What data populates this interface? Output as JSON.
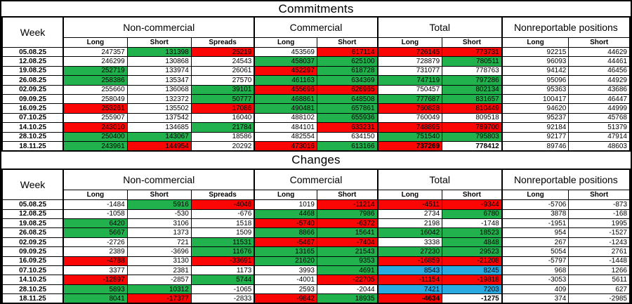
{
  "titles": {
    "commitments": "Commitments",
    "changes": "Changes"
  },
  "headers": {
    "week": "Week",
    "groups": [
      {
        "label": "Non-commercial",
        "cols": [
          "Long",
          "Short",
          "Spreads"
        ]
      },
      {
        "label": "Commercial",
        "cols": [
          "Long",
          "Short"
        ]
      },
      {
        "label": "Total",
        "cols": [
          "Long",
          "Short"
        ]
      },
      {
        "label": "Nonreportable positions",
        "cols": [
          "Long",
          "Short"
        ]
      }
    ]
  },
  "colors": {
    "highlight_green": "#21B24D",
    "highlight_red": "#FB0505",
    "highlight_blue": "#29ABE2",
    "grid": "#000000",
    "background": "#FFFFFF"
  },
  "commitments_rows": [
    {
      "week": "05.08.25",
      "cells": [
        [
          "247357",
          "w"
        ],
        [
          "131398",
          "g"
        ],
        [
          "25219",
          "r"
        ],
        [
          "453569",
          "w"
        ],
        [
          "617114",
          "r"
        ],
        [
          "726145",
          "r"
        ],
        [
          "773731",
          "r"
        ],
        [
          "92215",
          "w"
        ],
        [
          "44629",
          "w"
        ]
      ]
    },
    {
      "week": "12.08.25",
      "cells": [
        [
          "246299",
          "w"
        ],
        [
          "130868",
          "w"
        ],
        [
          "24543",
          "w"
        ],
        [
          "458037",
          "g"
        ],
        [
          "625100",
          "g"
        ],
        [
          "728879",
          "w"
        ],
        [
          "780511",
          "g"
        ],
        [
          "96093",
          "w"
        ],
        [
          "44461",
          "w"
        ]
      ]
    },
    {
      "week": "19.08.25",
      "cells": [
        [
          "252719",
          "g"
        ],
        [
          "133974",
          "w"
        ],
        [
          "26061",
          "w"
        ],
        [
          "452297",
          "r"
        ],
        [
          "618728",
          "g"
        ],
        [
          "731077",
          "w"
        ],
        [
          "778763",
          "w"
        ],
        [
          "94142",
          "w"
        ],
        [
          "46456",
          "w"
        ]
      ]
    },
    {
      "week": "26.08.25",
      "cells": [
        [
          "258386",
          "g"
        ],
        [
          "135347",
          "w"
        ],
        [
          "27570",
          "w"
        ],
        [
          "461163",
          "g"
        ],
        [
          "634369",
          "g"
        ],
        [
          "747119",
          "g"
        ],
        [
          "797286",
          "g"
        ],
        [
          "95096",
          "w"
        ],
        [
          "44929",
          "w"
        ]
      ]
    },
    {
      "week": "02.09.25",
      "cells": [
        [
          "255660",
          "w"
        ],
        [
          "136068",
          "w"
        ],
        [
          "39101",
          "g"
        ],
        [
          "455696",
          "r"
        ],
        [
          "626965",
          "r"
        ],
        [
          "750457",
          "w"
        ],
        [
          "802134",
          "g"
        ],
        [
          "95363",
          "w"
        ],
        [
          "43686",
          "w"
        ]
      ]
    },
    {
      "week": "09.09.25",
      "cells": [
        [
          "258049",
          "w"
        ],
        [
          "132372",
          "w"
        ],
        [
          "50777",
          "g"
        ],
        [
          "468861",
          "g"
        ],
        [
          "648508",
          "g"
        ],
        [
          "777687",
          "g"
        ],
        [
          "831657",
          "g"
        ],
        [
          "100417",
          "w"
        ],
        [
          "46447",
          "w"
        ]
      ]
    },
    {
      "week": "16.09.25",
      "cells": [
        [
          "253261",
          "r"
        ],
        [
          "135502",
          "w"
        ],
        [
          "17086",
          "r"
        ],
        [
          "490481",
          "g"
        ],
        [
          "657861",
          "g"
        ],
        [
          "760828",
          "r"
        ],
        [
          "810449",
          "r"
        ],
        [
          "94620",
          "w"
        ],
        [
          "44999",
          "w"
        ]
      ]
    },
    {
      "week": "07.10.25",
      "cells": [
        [
          "255907",
          "w"
        ],
        [
          "137542",
          "w"
        ],
        [
          "16040",
          "w"
        ],
        [
          "488102",
          "w"
        ],
        [
          "655936",
          "g"
        ],
        [
          "760049",
          "w"
        ],
        [
          "809518",
          "w"
        ],
        [
          "95237",
          "w"
        ],
        [
          "45768",
          "w"
        ]
      ]
    },
    {
      "week": "14.10.25",
      "cells": [
        [
          "243010",
          "r"
        ],
        [
          "134685",
          "w"
        ],
        [
          "21784",
          "g"
        ],
        [
          "484101",
          "w"
        ],
        [
          "633231",
          "r"
        ],
        [
          "748895",
          "r"
        ],
        [
          "789700",
          "r"
        ],
        [
          "92184",
          "w"
        ],
        [
          "51379",
          "w"
        ]
      ]
    },
    {
      "week": "28.10.25",
      "cells": [
        [
          "250400",
          "g"
        ],
        [
          "143067",
          "g"
        ],
        [
          "18586",
          "w"
        ],
        [
          "482554",
          "w"
        ],
        [
          "634150",
          "w"
        ],
        [
          "751540",
          "g"
        ],
        [
          "795803",
          "g"
        ],
        [
          "92177",
          "w"
        ],
        [
          "47914",
          "w"
        ]
      ]
    },
    {
      "week": "18.11.25",
      "cells": [
        [
          "243961",
          "g"
        ],
        [
          "144954",
          "r"
        ],
        [
          "20292",
          "w"
        ],
        [
          "473016",
          "r"
        ],
        [
          "613166",
          "g"
        ],
        [
          "737269",
          "r",
          "bold"
        ],
        [
          "778412",
          "w",
          "bold"
        ],
        [
          "89746",
          "w"
        ],
        [
          "48603",
          "w"
        ]
      ]
    }
  ],
  "changes_rows": [
    {
      "week": "05.08.25",
      "cells": [
        [
          "-1484",
          "w"
        ],
        [
          "5916",
          "g"
        ],
        [
          "-4046",
          "r"
        ],
        [
          "1019",
          "w"
        ],
        [
          "-11214",
          "r"
        ],
        [
          "-4511",
          "r"
        ],
        [
          "-9344",
          "r"
        ],
        [
          "-5706",
          "w"
        ],
        [
          "-873",
          "w"
        ]
      ]
    },
    {
      "week": "12.08.25",
      "cells": [
        [
          "-1058",
          "w"
        ],
        [
          "-530",
          "w"
        ],
        [
          "-676",
          "w"
        ],
        [
          "4468",
          "g"
        ],
        [
          "7986",
          "g"
        ],
        [
          "2734",
          "w"
        ],
        [
          "6780",
          "g"
        ],
        [
          "3878",
          "w"
        ],
        [
          "-168",
          "w"
        ]
      ]
    },
    {
      "week": "19.08.25",
      "cells": [
        [
          "6420",
          "g"
        ],
        [
          "3106",
          "w"
        ],
        [
          "1518",
          "w"
        ],
        [
          "-5740",
          "r"
        ],
        [
          "-6372",
          "r"
        ],
        [
          "2198",
          "w"
        ],
        [
          "-1748",
          "w"
        ],
        [
          "-1951",
          "w"
        ],
        [
          "1995",
          "w"
        ]
      ]
    },
    {
      "week": "26.08.25",
      "cells": [
        [
          "5667",
          "g"
        ],
        [
          "1373",
          "w"
        ],
        [
          "1509",
          "w"
        ],
        [
          "8866",
          "g"
        ],
        [
          "15641",
          "g"
        ],
        [
          "16042",
          "g"
        ],
        [
          "18523",
          "g"
        ],
        [
          "954",
          "w"
        ],
        [
          "-1527",
          "w"
        ]
      ]
    },
    {
      "week": "02.09.25",
      "cells": [
        [
          "-2726",
          "w"
        ],
        [
          "721",
          "w"
        ],
        [
          "11531",
          "g"
        ],
        [
          "-5467",
          "r"
        ],
        [
          "-7404",
          "r"
        ],
        [
          "3338",
          "w"
        ],
        [
          "4848",
          "g"
        ],
        [
          "267",
          "w"
        ],
        [
          "-1243",
          "w"
        ]
      ]
    },
    {
      "week": "09.09.25",
      "cells": [
        [
          "2389",
          "w"
        ],
        [
          "-3696",
          "w"
        ],
        [
          "11676",
          "g"
        ],
        [
          "13165",
          "g"
        ],
        [
          "21543",
          "g"
        ],
        [
          "27230",
          "g"
        ],
        [
          "29523",
          "g"
        ],
        [
          "5054",
          "w"
        ],
        [
          "2761",
          "w"
        ]
      ]
    },
    {
      "week": "16.09.25",
      "cells": [
        [
          "-4788",
          "r"
        ],
        [
          "3130",
          "w"
        ],
        [
          "-33691",
          "r"
        ],
        [
          "21620",
          "g"
        ],
        [
          "9353",
          "g"
        ],
        [
          "-16859",
          "r"
        ],
        [
          "-21208",
          "r"
        ],
        [
          "-5797",
          "w"
        ],
        [
          "-1448",
          "w"
        ]
      ]
    },
    {
      "week": "07.10.25",
      "cells": [
        [
          "3377",
          "w"
        ],
        [
          "2381",
          "w"
        ],
        [
          "1173",
          "w"
        ],
        [
          "3993",
          "w"
        ],
        [
          "4691",
          "g"
        ],
        [
          "8543",
          "b"
        ],
        [
          "8245",
          "b"
        ],
        [
          "968",
          "w"
        ],
        [
          "1266",
          "w"
        ]
      ]
    },
    {
      "week": "14.10.25",
      "cells": [
        [
          "-12897",
          "r"
        ],
        [
          "-2857",
          "w"
        ],
        [
          "5744",
          "g"
        ],
        [
          "-4001",
          "w"
        ],
        [
          "-22705",
          "r"
        ],
        [
          "-11154",
          "r"
        ],
        [
          "-19818",
          "r"
        ],
        [
          "-3053",
          "w"
        ],
        [
          "5611",
          "w"
        ]
      ]
    },
    {
      "week": "28.10.25",
      "cells": [
        [
          "5893",
          "g"
        ],
        [
          "10312",
          "g"
        ],
        [
          "-1065",
          "w"
        ],
        [
          "2593",
          "w"
        ],
        [
          "-2044",
          "w"
        ],
        [
          "7421",
          "b"
        ],
        [
          "7203",
          "b"
        ],
        [
          "409",
          "w"
        ],
        [
          "627",
          "w"
        ]
      ]
    },
    {
      "week": "18.11.25",
      "cells": [
        [
          "8041",
          "g"
        ],
        [
          "-17377",
          "r"
        ],
        [
          "-2833",
          "w"
        ],
        [
          "-9842",
          "r"
        ],
        [
          "18935",
          "g"
        ],
        [
          "-4634",
          "r",
          "bold"
        ],
        [
          "-1275",
          "w",
          "bold"
        ],
        [
          "374",
          "w"
        ],
        [
          "-2985",
          "w"
        ]
      ]
    }
  ]
}
